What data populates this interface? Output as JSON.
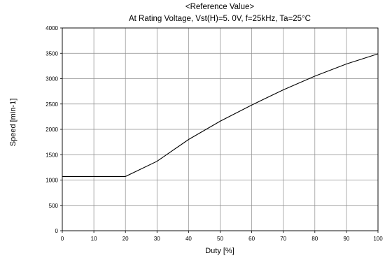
{
  "chart_data": {
    "type": "line",
    "title": "<Reference Value>",
    "subtitle": "At Rating Voltage,  Vst(H)=5. 0V, f=25kHz, Ta=25°C",
    "xlabel": "Duty  [%]",
    "ylabel": "Speed [min-1]",
    "xlim": [
      0,
      100
    ],
    "ylim": [
      0,
      4000
    ],
    "x_ticks": [
      0,
      10,
      20,
      30,
      40,
      50,
      60,
      70,
      80,
      90,
      100
    ],
    "y_ticks": [
      0,
      500,
      1000,
      1500,
      2000,
      2500,
      3000,
      3500,
      4000
    ],
    "grid": true,
    "legend": "none",
    "series": [
      {
        "x": [
          0,
          10,
          20,
          30,
          40,
          50,
          60,
          70,
          80,
          90,
          100
        ],
        "values": [
          1070,
          1070,
          1070,
          1370,
          1800,
          2160,
          2480,
          2780,
          3050,
          3290,
          3490
        ]
      }
    ]
  }
}
